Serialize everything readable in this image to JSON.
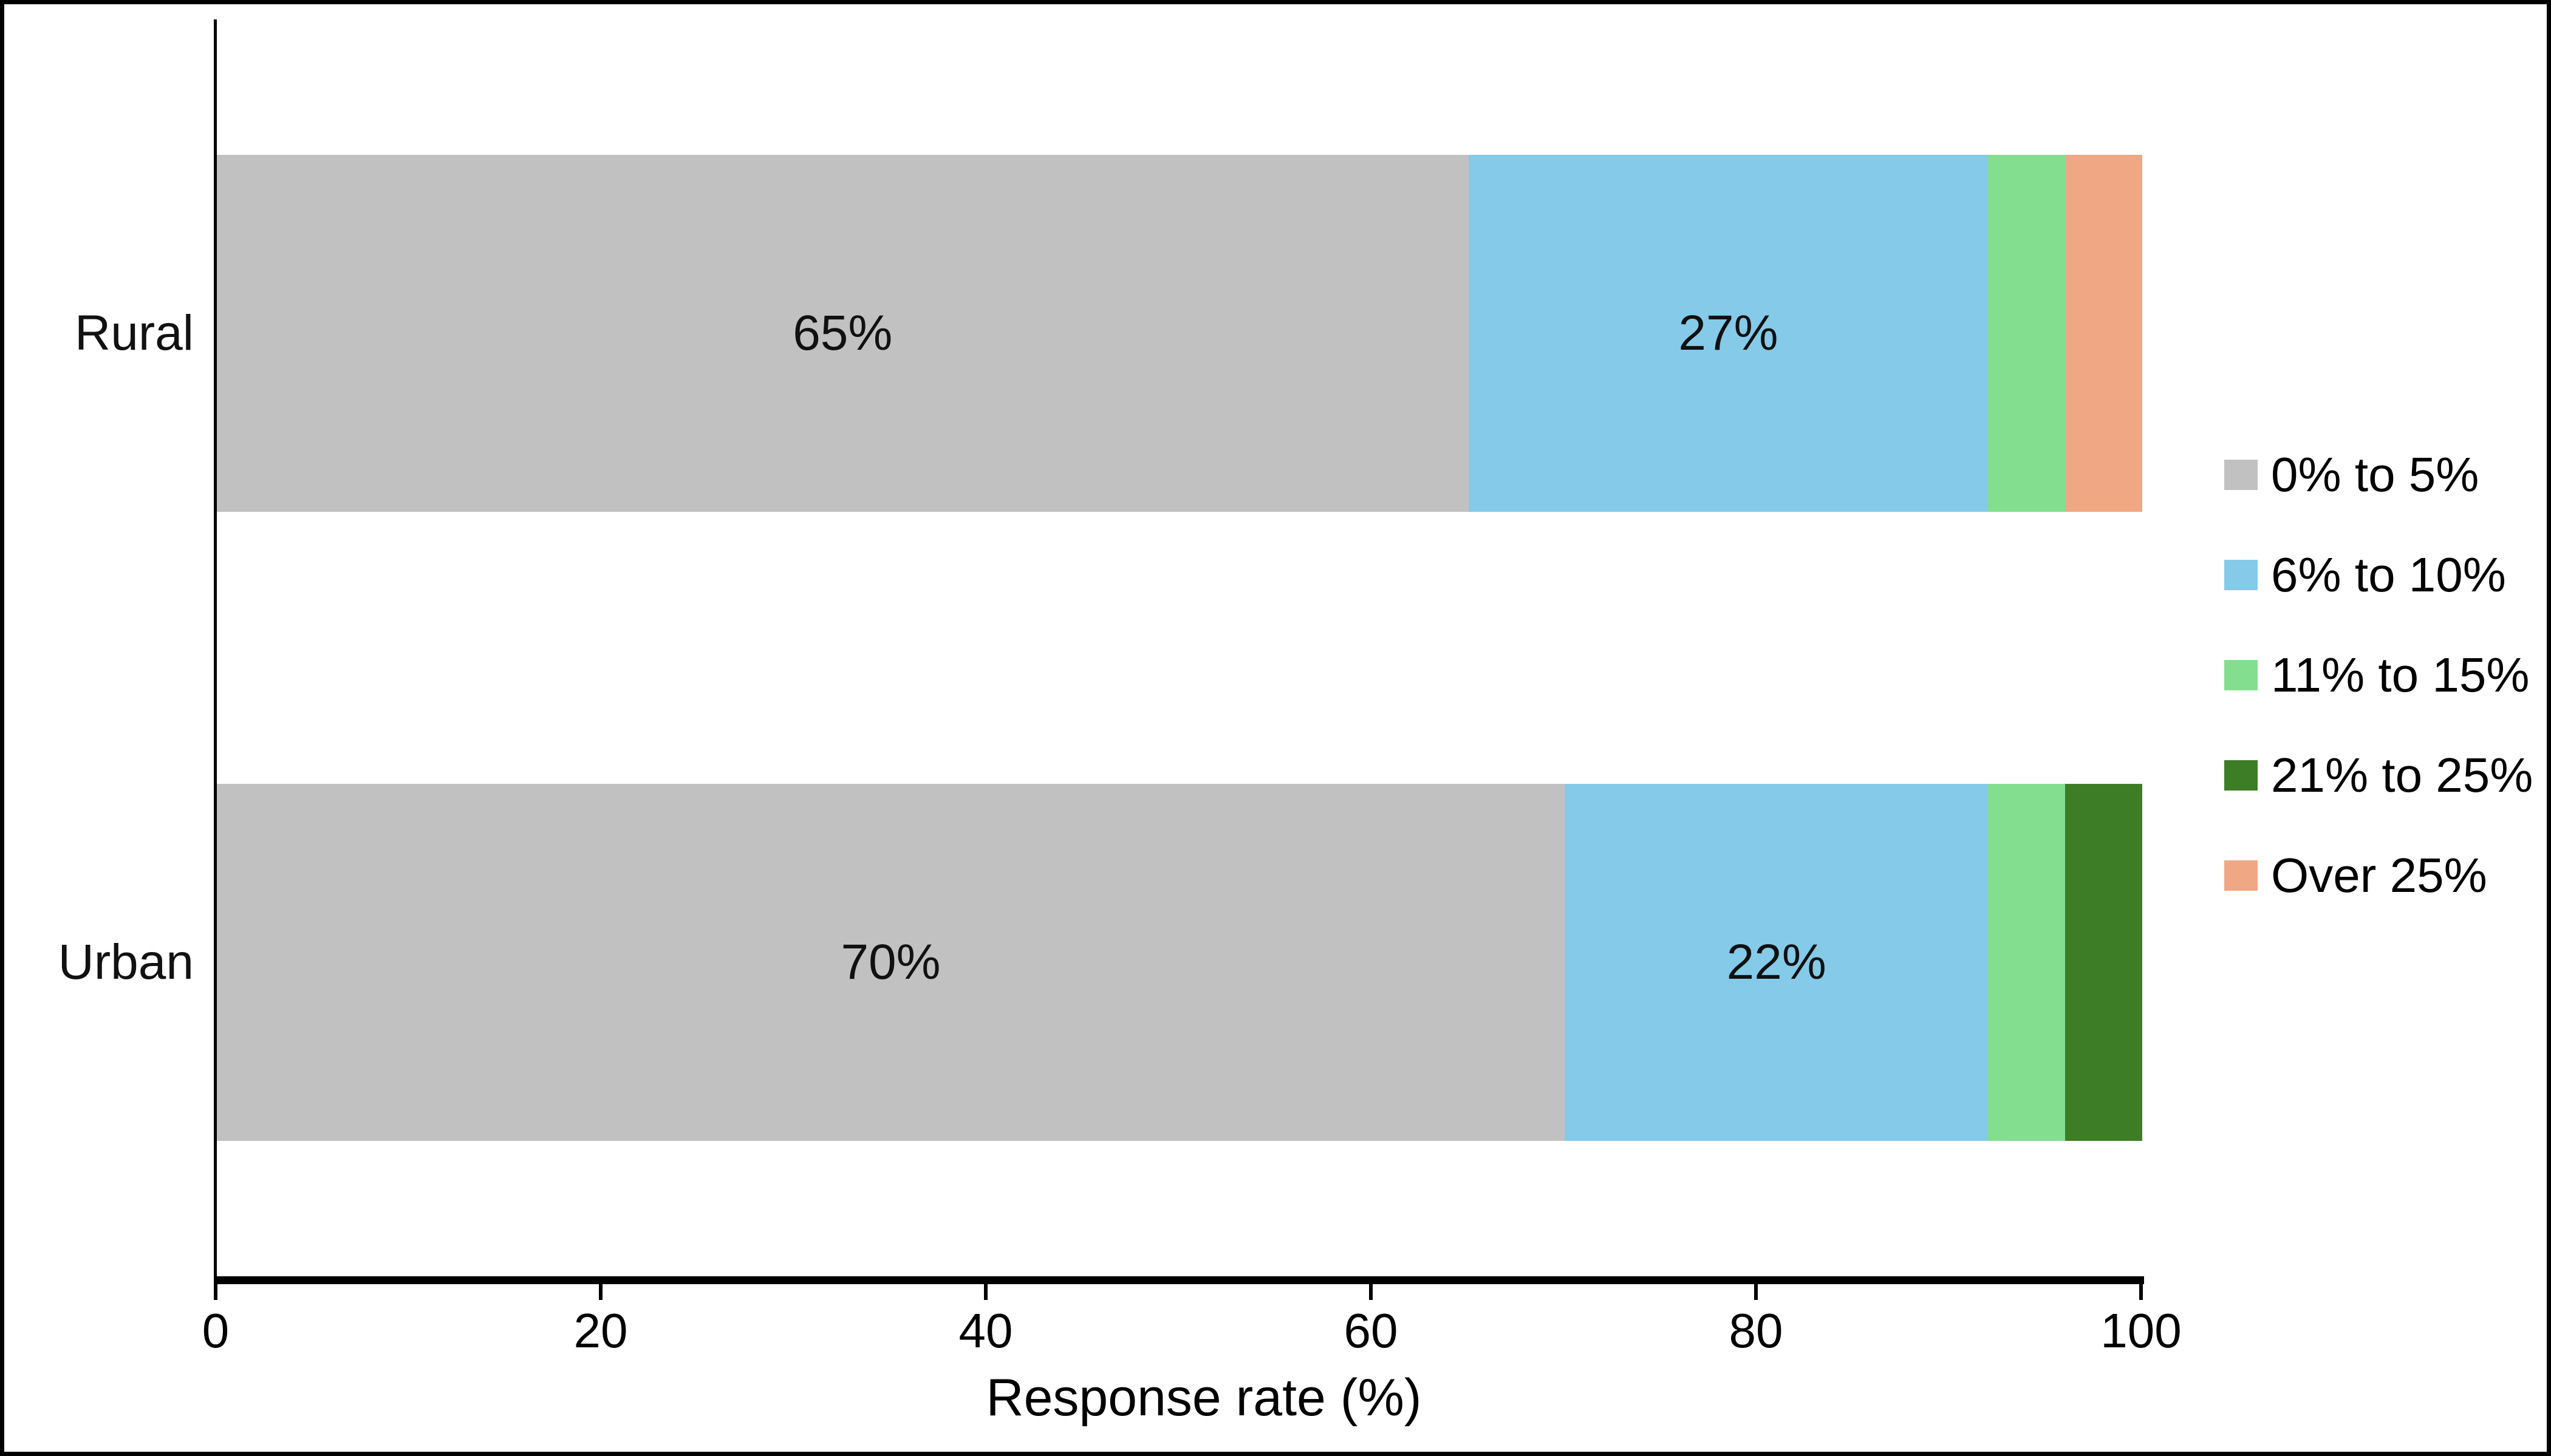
{
  "chart_data": {
    "type": "bar",
    "orientation": "horizontal",
    "stacked": true,
    "title": "",
    "categories": [
      "Rural",
      "Urban"
    ],
    "series": [
      {
        "name": "0% to 5%",
        "color": "#C1C1C1",
        "values": [
          65,
          70
        ]
      },
      {
        "name": "6% to 10%",
        "color": "#85CAE8",
        "values": [
          27,
          22
        ]
      },
      {
        "name": "11% to 15%",
        "color": "#84DE90",
        "values": [
          4,
          4
        ]
      },
      {
        "name": "21% to 25%",
        "color": "#3D7D26",
        "values": [
          0,
          4
        ]
      },
      {
        "name": "Over 25%",
        "color": "#F0A783",
        "values": [
          4,
          0
        ]
      }
    ],
    "bar_labels": [
      [
        "65%",
        "27%",
        "",
        "",
        ""
      ],
      [
        "70%",
        "22%",
        "",
        "",
        ""
      ]
    ],
    "xlabel": "Response rate (%)",
    "x_ticks": [
      "0",
      "20",
      "40",
      "60",
      "80",
      "100"
    ],
    "xlim": [
      0,
      100
    ],
    "grid": false,
    "legend_position": "right",
    "axis_color": "#000000",
    "background_color": "#FFFFFF"
  }
}
